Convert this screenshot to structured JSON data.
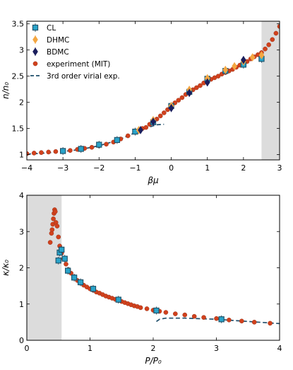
{
  "chart_data": [
    {
      "type": "scatter",
      "xlabel": "βμ",
      "ylabel": "n/n₀",
      "xlim": [
        -4,
        3
      ],
      "ylim": [
        0.9,
        3.55
      ],
      "xticks": [
        -4,
        -3,
        -2,
        -1,
        0,
        1,
        2,
        3
      ],
      "yticks": [
        1,
        1.5,
        2,
        2.5,
        3,
        3.5
      ],
      "shaded_x_range": [
        2.5,
        3
      ],
      "legend_position": "top-left",
      "series": [
        {
          "name": "CL",
          "marker": "square",
          "color": "#29a3c9",
          "edge_color": "#1d4f66",
          "errorbars": true,
          "points": [
            [
              -3.0,
              1.07
            ],
            [
              -2.5,
              1.11
            ],
            [
              -2.0,
              1.19
            ],
            [
              -1.5,
              1.28
            ],
            [
              -1.0,
              1.44
            ],
            [
              -0.5,
              1.62
            ],
            [
              0.0,
              1.93
            ],
            [
              0.5,
              2.2
            ],
            [
              1.0,
              2.45
            ],
            [
              1.5,
              2.6
            ],
            [
              2.0,
              2.72
            ],
            [
              2.5,
              2.83
            ]
          ]
        },
        {
          "name": "DHMC",
          "marker": "diamond",
          "color": "#f4a742",
          "errorbars": true,
          "points": [
            [
              -0.9,
              1.47
            ],
            [
              -0.5,
              1.66
            ],
            [
              0.0,
              1.93
            ],
            [
              0.5,
              2.24
            ],
            [
              1.0,
              2.46
            ],
            [
              1.5,
              2.62
            ],
            [
              1.75,
              2.69
            ],
            [
              2.0,
              2.78
            ],
            [
              2.25,
              2.86
            ],
            [
              2.5,
              2.9
            ]
          ]
        },
        {
          "name": "BDMC",
          "marker": "diamond",
          "color": "#1a1e5c",
          "errorbars": true,
          "points": [
            [
              -0.85,
              1.47
            ],
            [
              -0.5,
              1.63
            ],
            [
              0.0,
              1.89
            ],
            [
              0.5,
              2.18
            ],
            [
              1.0,
              2.38
            ],
            [
              2.0,
              2.81
            ]
          ]
        },
        {
          "name": "experiment (MIT)",
          "marker": "circle",
          "color": "#d1411d",
          "points": [
            [
              -4.0,
              1.02
            ],
            [
              -3.8,
              1.03
            ],
            [
              -3.6,
              1.04
            ],
            [
              -3.4,
              1.05
            ],
            [
              -3.2,
              1.06
            ],
            [
              -3.0,
              1.07
            ],
            [
              -2.8,
              1.08
            ],
            [
              -2.6,
              1.1
            ],
            [
              -2.4,
              1.12
            ],
            [
              -2.2,
              1.14
            ],
            [
              -2.0,
              1.17
            ],
            [
              -1.8,
              1.2
            ],
            [
              -1.6,
              1.24
            ],
            [
              -1.4,
              1.3
            ],
            [
              -1.2,
              1.36
            ],
            [
              -1.0,
              1.43
            ],
            [
              -0.9,
              1.45
            ],
            [
              -0.8,
              1.5
            ],
            [
              -0.7,
              1.52
            ],
            [
              -0.6,
              1.58
            ],
            [
              -0.5,
              1.63
            ],
            [
              -0.4,
              1.68
            ],
            [
              -0.3,
              1.74
            ],
            [
              -0.2,
              1.8
            ],
            [
              -0.1,
              1.86
            ],
            [
              0.0,
              1.93
            ],
            [
              0.1,
              1.99
            ],
            [
              0.2,
              2.04
            ],
            [
              0.3,
              2.09
            ],
            [
              0.4,
              2.15
            ],
            [
              0.5,
              2.19
            ],
            [
              0.6,
              2.24
            ],
            [
              0.7,
              2.28
            ],
            [
              0.8,
              2.32
            ],
            [
              0.9,
              2.37
            ],
            [
              1.0,
              2.41
            ],
            [
              1.1,
              2.44
            ],
            [
              1.2,
              2.47
            ],
            [
              1.3,
              2.5
            ],
            [
              1.4,
              2.54
            ],
            [
              1.5,
              2.57
            ],
            [
              1.6,
              2.6
            ],
            [
              1.7,
              2.63
            ],
            [
              1.8,
              2.67
            ],
            [
              1.9,
              2.71
            ],
            [
              2.0,
              2.75
            ],
            [
              2.1,
              2.78
            ],
            [
              2.2,
              2.83
            ],
            [
              2.3,
              2.87
            ],
            [
              2.4,
              2.91
            ],
            [
              2.5,
              2.95
            ],
            [
              2.6,
              3.02
            ],
            [
              2.7,
              3.1
            ],
            [
              2.8,
              3.2
            ],
            [
              2.9,
              3.32
            ],
            [
              3.0,
              3.45
            ]
          ]
        },
        {
          "name": "3rd order virial exp.",
          "line": "dashed",
          "color": "#1f4e6b",
          "points": [
            [
              -4.0,
              1.01
            ],
            [
              -3.5,
              1.03
            ],
            [
              -3.0,
              1.06
            ],
            [
              -2.5,
              1.1
            ],
            [
              -2.0,
              1.17
            ],
            [
              -1.5,
              1.27
            ],
            [
              -1.2,
              1.36
            ],
            [
              -1.0,
              1.42
            ],
            [
              -0.8,
              1.48
            ],
            [
              -0.6,
              1.53
            ],
            [
              -0.4,
              1.57
            ],
            [
              -0.2,
              1.58
            ]
          ]
        }
      ]
    },
    {
      "type": "scatter",
      "xlabel": "P/P₀",
      "ylabel": "κ/κ₀",
      "xlim": [
        0,
        4
      ],
      "ylim": [
        0,
        4
      ],
      "xticks": [
        0,
        1,
        2,
        3,
        4
      ],
      "yticks": [
        0,
        1,
        2,
        3,
        4
      ],
      "shaded_x_range": [
        0,
        0.55
      ],
      "series": [
        {
          "name": "CL",
          "marker": "square",
          "color": "#29a3c9",
          "edge_color": "#1d4f66",
          "errorbars": true,
          "points": [
            [
              0.5,
              2.2
            ],
            [
              0.52,
              2.42
            ],
            [
              0.55,
              2.5
            ],
            [
              0.6,
              2.25
            ],
            [
              0.65,
              1.92
            ],
            [
              0.75,
              1.73
            ],
            [
              0.85,
              1.6
            ],
            [
              1.05,
              1.42
            ],
            [
              1.45,
              1.12
            ],
            [
              2.05,
              0.82
            ],
            [
              3.08,
              0.58
            ]
          ]
        },
        {
          "name": "experiment (MIT)",
          "marker": "circle",
          "color": "#d1411d",
          "points": [
            [
              0.37,
              2.7
            ],
            [
              0.39,
              2.95
            ],
            [
              0.4,
              3.05
            ],
            [
              0.41,
              3.2
            ],
            [
              0.42,
              3.35
            ],
            [
              0.43,
              3.5
            ],
            [
              0.44,
              3.6
            ],
            [
              0.45,
              3.55
            ],
            [
              0.46,
              3.25
            ],
            [
              0.48,
              3.15
            ],
            [
              0.5,
              2.85
            ],
            [
              0.52,
              2.6
            ],
            [
              0.55,
              2.4
            ],
            [
              0.58,
              2.25
            ],
            [
              0.62,
              2.1
            ],
            [
              0.66,
              1.95
            ],
            [
              0.7,
              1.85
            ],
            [
              0.75,
              1.75
            ],
            [
              0.8,
              1.65
            ],
            [
              0.85,
              1.58
            ],
            [
              0.9,
              1.52
            ],
            [
              0.95,
              1.47
            ],
            [
              1.0,
              1.42
            ],
            [
              1.05,
              1.38
            ],
            [
              1.1,
              1.33
            ],
            [
              1.15,
              1.3
            ],
            [
              1.2,
              1.26
            ],
            [
              1.25,
              1.22
            ],
            [
              1.3,
              1.19
            ],
            [
              1.35,
              1.16
            ],
            [
              1.4,
              1.13
            ],
            [
              1.45,
              1.1
            ],
            [
              1.5,
              1.07
            ],
            [
              1.55,
              1.04
            ],
            [
              1.6,
              1.01
            ],
            [
              1.65,
              0.98
            ],
            [
              1.7,
              0.95
            ],
            [
              1.75,
              0.93
            ],
            [
              1.8,
              0.9
            ],
            [
              1.9,
              0.87
            ],
            [
              2.0,
              0.83
            ],
            [
              2.1,
              0.8
            ],
            [
              2.2,
              0.77
            ],
            [
              2.35,
              0.73
            ],
            [
              2.5,
              0.7
            ],
            [
              2.65,
              0.66
            ],
            [
              2.8,
              0.63
            ],
            [
              3.0,
              0.6
            ],
            [
              3.2,
              0.56
            ],
            [
              3.4,
              0.53
            ],
            [
              3.6,
              0.5
            ],
            [
              3.85,
              0.47
            ]
          ]
        },
        {
          "name": "3rd order virial exp.",
          "line": "dashed",
          "color": "#1f4e6b",
          "points": [
            [
              2.05,
              0.52
            ],
            [
              2.1,
              0.58
            ],
            [
              2.2,
              0.61
            ],
            [
              2.5,
              0.61
            ],
            [
              3.0,
              0.58
            ],
            [
              3.5,
              0.52
            ],
            [
              4.0,
              0.46
            ]
          ]
        }
      ]
    }
  ]
}
